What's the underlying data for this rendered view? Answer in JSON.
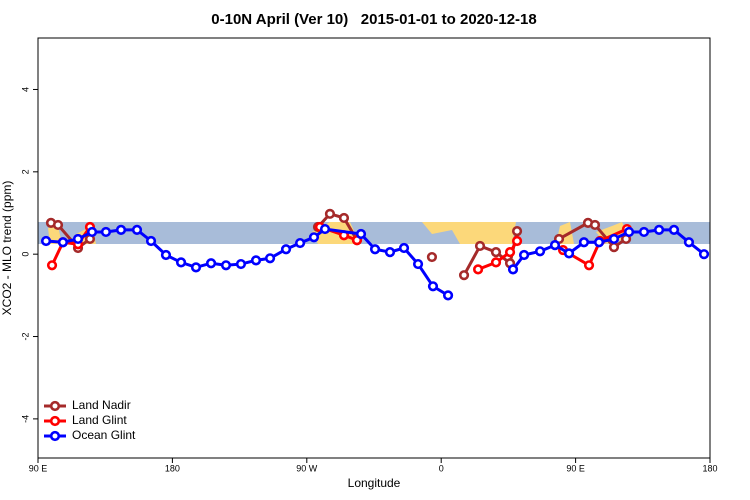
{
  "chart_data": {
    "type": "line",
    "title": "0-10N April (Ver 10)   2015-01-01 to 2020-12-18",
    "x_label": "Longitude",
    "y_label": "XCO2 - MLO trend (ppm)",
    "xlim": [
      90,
      540
    ],
    "xticks": [
      {
        "value": 90,
        "label": "90 E"
      },
      180,
      {
        "value": 270,
        "label": "90 W"
      },
      {
        "value": 360,
        "label": "0"
      },
      {
        "value": 450,
        "label": "90 E"
      },
      {
        "value": 540,
        "label": "180"
      }
    ],
    "ylim": [
      -4.95,
      5.25
    ],
    "yticks": [
      -4,
      -2,
      0,
      2,
      4
    ],
    "legend": "bottom-left",
    "series": [
      {
        "name": "Land Nadir",
        "color": "#a52a2a",
        "x": [
          98.7,
          103.4,
          116.8,
          124.8,
          null,
          277.5,
          285.5,
          294.9,
          303.6,
          null,
          353.8,
          null,
          375.3,
          386,
          396.7,
          406.1,
          410.8,
          null,
          438.9,
          458.3,
          463,
          475.7,
          483.8
        ],
        "values": [
          0.76,
          0.71,
          0.15,
          0.37,
          null,
          0.66,
          0.98,
          0.88,
          0.34,
          null,
          -0.07,
          null,
          -0.51,
          0.2,
          0.05,
          -0.22,
          0.56,
          null,
          0.37,
          0.76,
          0.71,
          0.17,
          0.37
        ]
      },
      {
        "name": "Land Glint",
        "color": "#ff0000",
        "x": [
          99.4,
          106.7,
          116.8,
          124.8,
          null,
          278.8,
          294.9,
          303.6,
          null,
          384.7,
          396.7,
          406.1,
          410.8,
          null,
          441.6,
          459,
          466.3,
          484.4
        ],
        "values": [
          -0.27,
          0.29,
          0.24,
          0.66,
          null,
          0.66,
          0.46,
          0.34,
          null,
          -0.37,
          -0.2,
          0.05,
          0.32,
          null,
          0.1,
          -0.27,
          0.32,
          0.61
        ]
      },
      {
        "name": "Ocean Glint",
        "color": "#0000ff",
        "x": [
          95.4,
          106.7,
          116.8,
          126.2,
          135.5,
          145.6,
          156.3,
          165.7,
          175.7,
          185.8,
          195.8,
          205.9,
          215.9,
          225.9,
          236,
          245.4,
          256.1,
          265.5,
          274.8,
          282.2,
          306.3,
          315.7,
          325.7,
          335.1,
          344.5,
          354.5,
          364.6,
          null,
          408.1,
          415.5,
          426.2,
          436.2,
          445.6,
          455.6,
          465.7,
          475.7,
          485.8,
          495.8,
          505.9,
          515.9,
          525.9,
          536
        ],
        "values": [
          0.32,
          0.29,
          0.37,
          0.54,
          0.54,
          0.59,
          0.59,
          0.32,
          -0.02,
          -0.2,
          -0.32,
          -0.22,
          -0.27,
          -0.24,
          -0.15,
          -0.1,
          0.12,
          0.27,
          0.41,
          0.61,
          0.49,
          0.12,
          0.05,
          0.15,
          -0.24,
          -0.78,
          -1.0,
          null,
          -0.37,
          -0.02,
          0.07,
          0.22,
          0.02,
          0.29,
          0.29,
          0.37,
          0.54,
          0.54,
          0.59,
          0.59,
          0.29,
          0
        ]
      }
    ]
  }
}
